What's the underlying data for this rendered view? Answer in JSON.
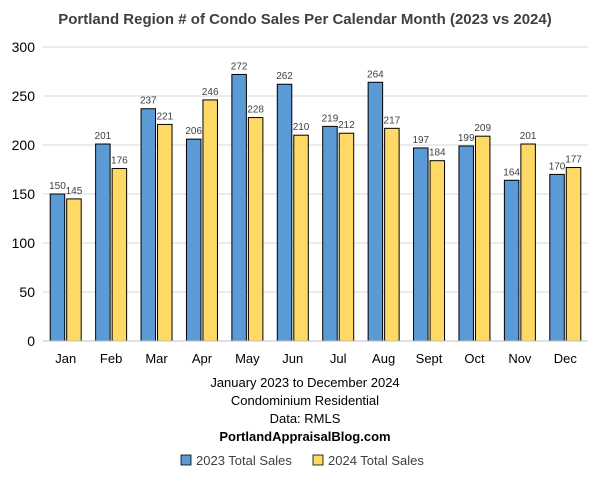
{
  "chart_data": {
    "type": "bar",
    "title": "Portland Region # of Condo Sales Per Calendar Month (2023 vs 2024)",
    "xlabel": "",
    "ylabel": "",
    "categories": [
      "Jan",
      "Feb",
      "Mar",
      "Apr",
      "May",
      "Jun",
      "Jul",
      "Aug",
      "Sept",
      "Oct",
      "Nov",
      "Dec"
    ],
    "series": [
      {
        "name": "2023 Total Sales",
        "values": [
          150,
          201,
          237,
          206,
          272,
          262,
          219,
          264,
          197,
          199,
          164,
          170
        ],
        "color": "#5b9bd5"
      },
      {
        "name": "2024 Total Sales",
        "values": [
          145,
          176,
          221,
          246,
          228,
          210,
          212,
          217,
          184,
          209,
          201,
          177
        ],
        "color": "#ffd966"
      }
    ],
    "ylim": [
      0,
      300
    ],
    "yticks": [
      0,
      50,
      100,
      150,
      200,
      250,
      300
    ],
    "grid": true,
    "legend_position": "bottom",
    "data_labels": true
  },
  "notes": {
    "line1": "January 2023 to December 2024",
    "line2": "Condominium Residential",
    "line3": "Data: RMLS",
    "line4": "PortlandAppraisalBlog.com"
  }
}
